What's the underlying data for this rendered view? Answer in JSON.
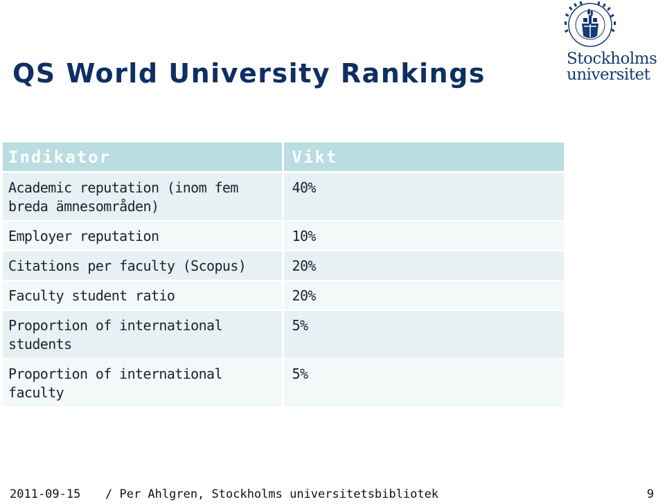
{
  "slide": {
    "title": "QS World University Rankings",
    "logo": {
      "line1": "Stockholms",
      "line2": "universitet",
      "seal_text": "STOCKHOLMS UNIVERSITET"
    }
  },
  "table": {
    "headers": [
      "Indikator",
      "Vikt"
    ],
    "rows": [
      {
        "indicator": "Academic reputation (inom fem breda ämnesområden)",
        "weight": "40%"
      },
      {
        "indicator": "Employer reputation",
        "weight": "10%"
      },
      {
        "indicator": "Citations per faculty (Scopus)",
        "weight": "20%"
      },
      {
        "indicator": "Faculty student ratio",
        "weight": "20%"
      },
      {
        "indicator": "Proportion of international students",
        "weight": "5%"
      },
      {
        "indicator": "Proportion of international faculty",
        "weight": "5%"
      }
    ]
  },
  "footer": {
    "date": "2011-09-15",
    "author": "/ Per Ahlgren, Stockholms universitetsbibliotek",
    "page": "9"
  },
  "colors": {
    "title": "#0e2f64",
    "header_bg": "#b9dde1",
    "row_odd": "#e7f1f3",
    "row_even": "#f3f8f9",
    "logo": "#173a72"
  }
}
